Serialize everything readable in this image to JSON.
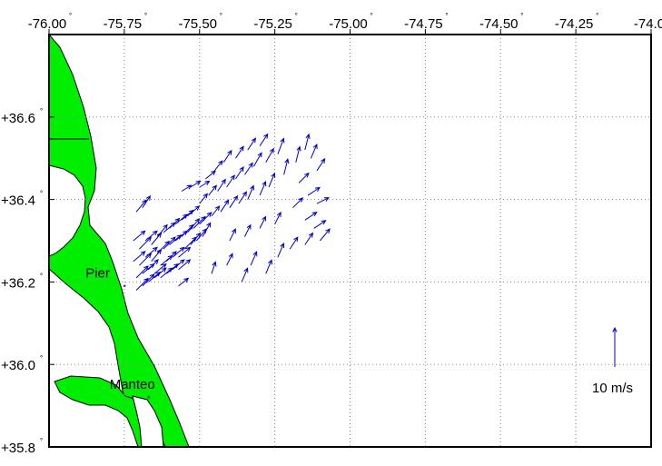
{
  "map": {
    "lon_range": [
      -76.0,
      -74.0
    ],
    "lat_range": [
      35.8,
      36.8
    ],
    "lon_ticks": [
      "-76.00",
      "-75.75",
      "-75.50",
      "-75.25",
      "-75.00",
      "-74.75",
      "-74.50",
      "-74.25",
      "-74.0"
    ],
    "lat_ticks": [
      "+36.6",
      "+36.4",
      "+36.2",
      "+36.0",
      "+35.8"
    ],
    "degree_symbol": "°",
    "grid": "dotted",
    "colors": {
      "land": "#00ee00",
      "vectors": "#0000cc",
      "frame": "#000000"
    }
  },
  "places": [
    {
      "name": "Pier",
      "lon": -75.74,
      "lat": 36.18
    },
    {
      "name": "Manteo",
      "lon": -75.66,
      "lat": 35.91
    }
  ],
  "scale": {
    "label": "10 m/s",
    "speed": 10
  },
  "chart_data": {
    "type": "scatter",
    "description_units": "lon (deg), lat (deg), u east (m/s), v north (m/s)",
    "vectors": [
      [
        -75.71,
        36.37,
        2.5,
        3.0
      ],
      [
        -75.69,
        36.38,
        2.0,
        3.0
      ],
      [
        -75.72,
        36.3,
        3.0,
        2.5
      ],
      [
        -75.7,
        36.28,
        3.0,
        3.0
      ],
      [
        -75.68,
        36.3,
        3.0,
        2.5
      ],
      [
        -75.66,
        36.29,
        2.5,
        3.0
      ],
      [
        -75.64,
        36.31,
        2.5,
        3.0
      ],
      [
        -75.62,
        36.32,
        3.0,
        2.5
      ],
      [
        -75.6,
        36.33,
        2.5,
        2.5
      ],
      [
        -75.58,
        36.34,
        3.0,
        2.5
      ],
      [
        -75.56,
        36.35,
        3.0,
        2.5
      ],
      [
        -75.54,
        36.36,
        3.0,
        2.5
      ],
      [
        -75.72,
        36.25,
        3.0,
        2.5
      ],
      [
        -75.7,
        36.24,
        3.0,
        3.0
      ],
      [
        -75.68,
        36.26,
        3.0,
        2.5
      ],
      [
        -75.66,
        36.25,
        2.5,
        3.0
      ],
      [
        -75.64,
        36.27,
        3.0,
        3.0
      ],
      [
        -75.62,
        36.28,
        3.0,
        3.0
      ],
      [
        -75.6,
        36.29,
        3.0,
        2.5
      ],
      [
        -75.58,
        36.3,
        3.0,
        2.5
      ],
      [
        -75.56,
        36.31,
        3.0,
        3.0
      ],
      [
        -75.54,
        36.32,
        3.0,
        3.5
      ],
      [
        -75.52,
        36.33,
        3.0,
        3.0
      ],
      [
        -75.5,
        36.34,
        3.0,
        3.0
      ],
      [
        -75.71,
        36.21,
        3.0,
        3.0
      ],
      [
        -75.69,
        36.22,
        3.0,
        2.5
      ],
      [
        -75.67,
        36.23,
        2.5,
        2.5
      ],
      [
        -75.65,
        36.22,
        3.0,
        2.5
      ],
      [
        -75.63,
        36.24,
        3.0,
        2.5
      ],
      [
        -75.61,
        36.25,
        2.5,
        2.5
      ],
      [
        -75.59,
        36.26,
        3.0,
        2.5
      ],
      [
        -75.57,
        36.26,
        3.0,
        2.5
      ],
      [
        -75.55,
        36.28,
        3.0,
        3.0
      ],
      [
        -75.53,
        36.29,
        2.5,
        3.0
      ],
      [
        -75.51,
        36.3,
        2.5,
        3.0
      ],
      [
        -75.49,
        36.31,
        2.0,
        3.5
      ],
      [
        -75.71,
        36.18,
        3.0,
        3.0
      ],
      [
        -75.69,
        36.19,
        3.0,
        3.0
      ],
      [
        -75.67,
        36.2,
        3.0,
        2.5
      ],
      [
        -75.65,
        36.21,
        3.0,
        2.5
      ],
      [
        -75.63,
        36.21,
        3.0,
        2.5
      ],
      [
        -75.61,
        36.22,
        3.0,
        2.5
      ],
      [
        -75.59,
        36.23,
        3.0,
        2.5
      ],
      [
        -75.57,
        36.23,
        3.0,
        2.5
      ],
      [
        -75.56,
        36.42,
        2.5,
        1.5
      ],
      [
        -75.53,
        36.43,
        2.5,
        1.5
      ],
      [
        -75.5,
        36.43,
        2.5,
        1.5
      ],
      [
        -75.48,
        36.45,
        2.5,
        2.0
      ],
      [
        -75.45,
        36.47,
        2.0,
        2.5
      ],
      [
        -75.42,
        36.49,
        2.0,
        3.0
      ],
      [
        -75.38,
        36.5,
        2.0,
        3.0
      ],
      [
        -75.34,
        36.52,
        2.0,
        3.0
      ],
      [
        -75.3,
        36.53,
        2.0,
        3.0
      ],
      [
        -75.5,
        36.39,
        2.0,
        2.5
      ],
      [
        -75.47,
        36.41,
        2.0,
        2.5
      ],
      [
        -75.44,
        36.42,
        2.0,
        3.0
      ],
      [
        -75.41,
        36.43,
        2.0,
        3.0
      ],
      [
        -75.38,
        36.45,
        2.0,
        3.0
      ],
      [
        -75.35,
        36.46,
        2.0,
        3.0
      ],
      [
        -75.32,
        36.48,
        2.0,
        3.5
      ],
      [
        -75.28,
        36.49,
        2.0,
        3.5
      ],
      [
        -75.24,
        36.51,
        1.5,
        4.0
      ],
      [
        -75.46,
        36.36,
        2.0,
        2.5
      ],
      [
        -75.43,
        36.37,
        2.0,
        3.0
      ],
      [
        -75.4,
        36.38,
        2.0,
        3.0
      ],
      [
        -75.37,
        36.39,
        2.0,
        3.0
      ],
      [
        -75.34,
        36.4,
        1.5,
        3.5
      ],
      [
        -75.3,
        36.41,
        1.5,
        3.5
      ],
      [
        -75.27,
        36.43,
        1.5,
        3.5
      ],
      [
        -75.22,
        36.46,
        1.0,
        4.0
      ],
      [
        -75.18,
        36.49,
        1.0,
        4.0
      ],
      [
        -75.15,
        36.52,
        1.0,
        4.0
      ],
      [
        -75.13,
        36.5,
        1.5,
        3.5
      ],
      [
        -75.11,
        36.47,
        2.0,
        3.0
      ],
      [
        -75.17,
        36.44,
        2.5,
        2.5
      ],
      [
        -75.14,
        36.41,
        3.0,
        2.0
      ],
      [
        -75.11,
        36.39,
        3.0,
        1.5
      ],
      [
        -75.19,
        36.38,
        2.5,
        2.5
      ],
      [
        -75.15,
        36.35,
        3.0,
        2.0
      ],
      [
        -75.12,
        36.33,
        3.0,
        2.0
      ],
      [
        -75.46,
        36.22,
        1.0,
        3.0
      ],
      [
        -75.41,
        36.24,
        1.5,
        3.0
      ],
      [
        -75.36,
        36.2,
        1.5,
        3.5
      ],
      [
        -75.33,
        36.24,
        1.5,
        3.5
      ],
      [
        -75.28,
        36.22,
        1.5,
        3.5
      ],
      [
        -75.24,
        36.26,
        1.5,
        3.5
      ],
      [
        -75.2,
        36.28,
        2.0,
        3.0
      ],
      [
        -75.15,
        36.29,
        2.0,
        3.0
      ],
      [
        -75.1,
        36.3,
        2.5,
        3.0
      ],
      [
        -75.4,
        36.3,
        1.5,
        3.0
      ],
      [
        -75.35,
        36.31,
        1.5,
        3.0
      ],
      [
        -75.3,
        36.33,
        1.5,
        3.0
      ],
      [
        -75.25,
        36.34,
        1.5,
        3.0
      ],
      [
        -75.57,
        36.19,
        2.5,
        2.0
      ]
    ]
  }
}
